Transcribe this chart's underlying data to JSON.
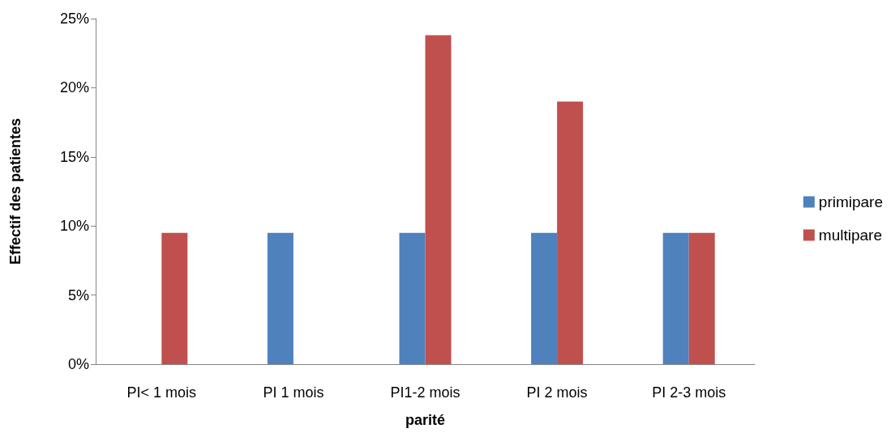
{
  "chart_data": {
    "type": "bar",
    "xlabel": "parité",
    "ylabel": "Effectif des patientes",
    "categories": [
      "PI< 1 mois",
      "PI 1 mois",
      "PI1-2 mois",
      "PI 2 mois",
      "PI 2-3 mois"
    ],
    "series": [
      {
        "name": "primipare",
        "color": "#4f81bd",
        "values": [
          null,
          9.5,
          9.5,
          9.5,
          9.5
        ]
      },
      {
        "name": "multipare",
        "color": "#c0504d",
        "values": [
          9.5,
          null,
          23.8,
          19,
          9.5
        ]
      }
    ],
    "ylim": [
      0,
      25
    ],
    "yticks": [
      {
        "value": 0,
        "label": "0%"
      },
      {
        "value": 5,
        "label": "5%"
      },
      {
        "value": 10,
        "label": "10%"
      },
      {
        "value": 15,
        "label": "15%"
      },
      {
        "value": 20,
        "label": "20%"
      },
      {
        "value": 25,
        "label": "25%"
      }
    ],
    "grid": false,
    "legend": "right"
  }
}
